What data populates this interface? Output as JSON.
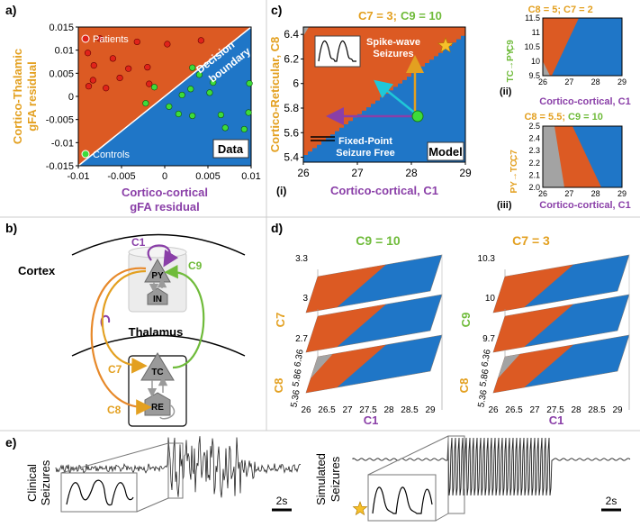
{
  "colors": {
    "orange": "#dc5a23",
    "blue": "#1f76c7",
    "gray": "#a3a3a3",
    "purple": "#8a3fa8",
    "green": "#6fbb3a",
    "gold": "#e3a020",
    "cyan": "#1fc8d8",
    "star": "#f6c02a"
  },
  "panel_a": {
    "tag": "a)",
    "ylabel_line1": "Cortico-Thalamic",
    "ylabel_line2": "gFA residual",
    "xlabel_line1": "Cortico-cortical",
    "xlabel_line2": "gFA residual",
    "legend_patients": "Patients",
    "legend_controls": "Controls",
    "boundary_line1": "Decision",
    "boundary_line2": "boundary",
    "box_label": "Data",
    "yticks": [
      "0.015",
      "0.01",
      "0.005",
      "0",
      "-0.005",
      "-0.01",
      "-0.015"
    ],
    "xticks": [
      "-0.01",
      "-0.005",
      "0",
      "0.005",
      "0.01"
    ],
    "xlim": [
      -0.01,
      0.01
    ],
    "ylim": [
      -0.015,
      0.015
    ],
    "patients": [
      [
        -0.0075,
        0.0125
      ],
      [
        -0.0032,
        0.0118
      ],
      [
        0.0003,
        0.0113
      ],
      [
        0.0042,
        0.0121
      ],
      [
        -0.0089,
        0.0094
      ],
      [
        -0.006,
        0.0082
      ],
      [
        -0.0082,
        0.0067
      ],
      [
        -0.0042,
        0.006
      ],
      [
        -0.002,
        0.0063
      ],
      [
        -0.0052,
        0.004
      ],
      [
        -0.0083,
        0.0035
      ],
      [
        -0.0068,
        0.0018
      ],
      [
        -0.0088,
        0.0022
      ],
      [
        -0.0018,
        0.0027
      ]
    ],
    "controls": [
      [
        -0.0012,
        0.002
      ],
      [
        0.0032,
        0.0062
      ],
      [
        0.004,
        0.0047
      ],
      [
        0.0056,
        0.003
      ],
      [
        0.003,
        0.0016
      ],
      [
        0.0052,
        0.0008
      ],
      [
        0.002,
        0.0003
      ],
      [
        0.0098,
        0.0028
      ],
      [
        -0.0022,
        -0.0015
      ],
      [
        0.0005,
        -0.0022
      ],
      [
        0.0016,
        -0.0038
      ],
      [
        0.0032,
        -0.0042
      ],
      [
        0.0065,
        -0.004
      ],
      [
        0.0097,
        -0.0035
      ],
      [
        0.007,
        -0.0068
      ],
      [
        0.0092,
        -0.0071
      ]
    ]
  },
  "panel_b": {
    "tag": "b)",
    "cortex": "Cortex",
    "thalamus": "Thalamus",
    "py": "PY",
    "in": "IN",
    "tc": "TC",
    "re": "RE",
    "c1": "C1",
    "c7": "C7",
    "c8": "C8",
    "c9": "C9"
  },
  "panel_c": {
    "tag": "c)",
    "sub": "(i)",
    "title_a": "C7 = 3;",
    "title_b": "C9 = 10",
    "xlabel": "Cortico-cortical, C1",
    "ylabel": "Cortico-Reticular, C8",
    "xticks": [
      "26",
      "27",
      "28",
      "29"
    ],
    "yticks": [
      "6.4",
      "6.2",
      "6",
      "5.8",
      "5.6",
      "5.4"
    ],
    "xlim": [
      26,
      29
    ],
    "ylim": [
      5.36,
      6.46
    ],
    "spike_line1": "Spike-wave",
    "spike_line2": "Seizures",
    "fixed_line1": "Fixed-Point",
    "fixed_line2": "Seizure Free",
    "model": "Model",
    "ii_title_a": "C8 = 5;",
    "ii_title_b": "C7 = 2",
    "ii_ylabel_a": "TC→PY,",
    "ii_ylabel_b": "C9",
    "ii_xlabel": "Cortico-cortical, C1",
    "ii_sub": "(ii)",
    "ii_yticks": [
      "11.5",
      "11",
      "10.5",
      "10",
      "9.5"
    ],
    "ii_xticks": [
      "26",
      "27",
      "28",
      "29"
    ],
    "iii_title_a": "C8 = 5.5;",
    "iii_title_b": "C9 = 10",
    "iii_ylabel_a": "PY→TC,",
    "iii_ylabel_b": "C7",
    "iii_xlabel": "Cortico-cortical, C1",
    "iii_sub": "(iii)",
    "iii_yticks": [
      "2.5",
      "2.4",
      "2.3",
      "2.2",
      "2.1",
      "2.0"
    ],
    "iii_xticks": [
      "26",
      "27",
      "28",
      "29"
    ]
  },
  "panel_d": {
    "tag": "d)",
    "left_title": "C9 = 10",
    "right_title": "C7 = 3",
    "left_axis": "C7",
    "right_axis": "C9",
    "c8_label": "C8",
    "c1_label": "C1",
    "left_levels": [
      "3.3",
      "3",
      "2.7"
    ],
    "right_levels": [
      "10.3",
      "10",
      "9.7"
    ],
    "c8_ticks": [
      "6.36",
      "5.86",
      "5.36"
    ],
    "c1_ticks": [
      "26",
      "26.5",
      "27",
      "27.5",
      "28",
      "28.5",
      "29"
    ]
  },
  "panel_e": {
    "tag": "e)",
    "clinical_line1": "Clinical",
    "clinical_line2": "Seizures",
    "simulated_line1": "Simulated",
    "simulated_line2": "Seizures",
    "scale": "2s"
  }
}
